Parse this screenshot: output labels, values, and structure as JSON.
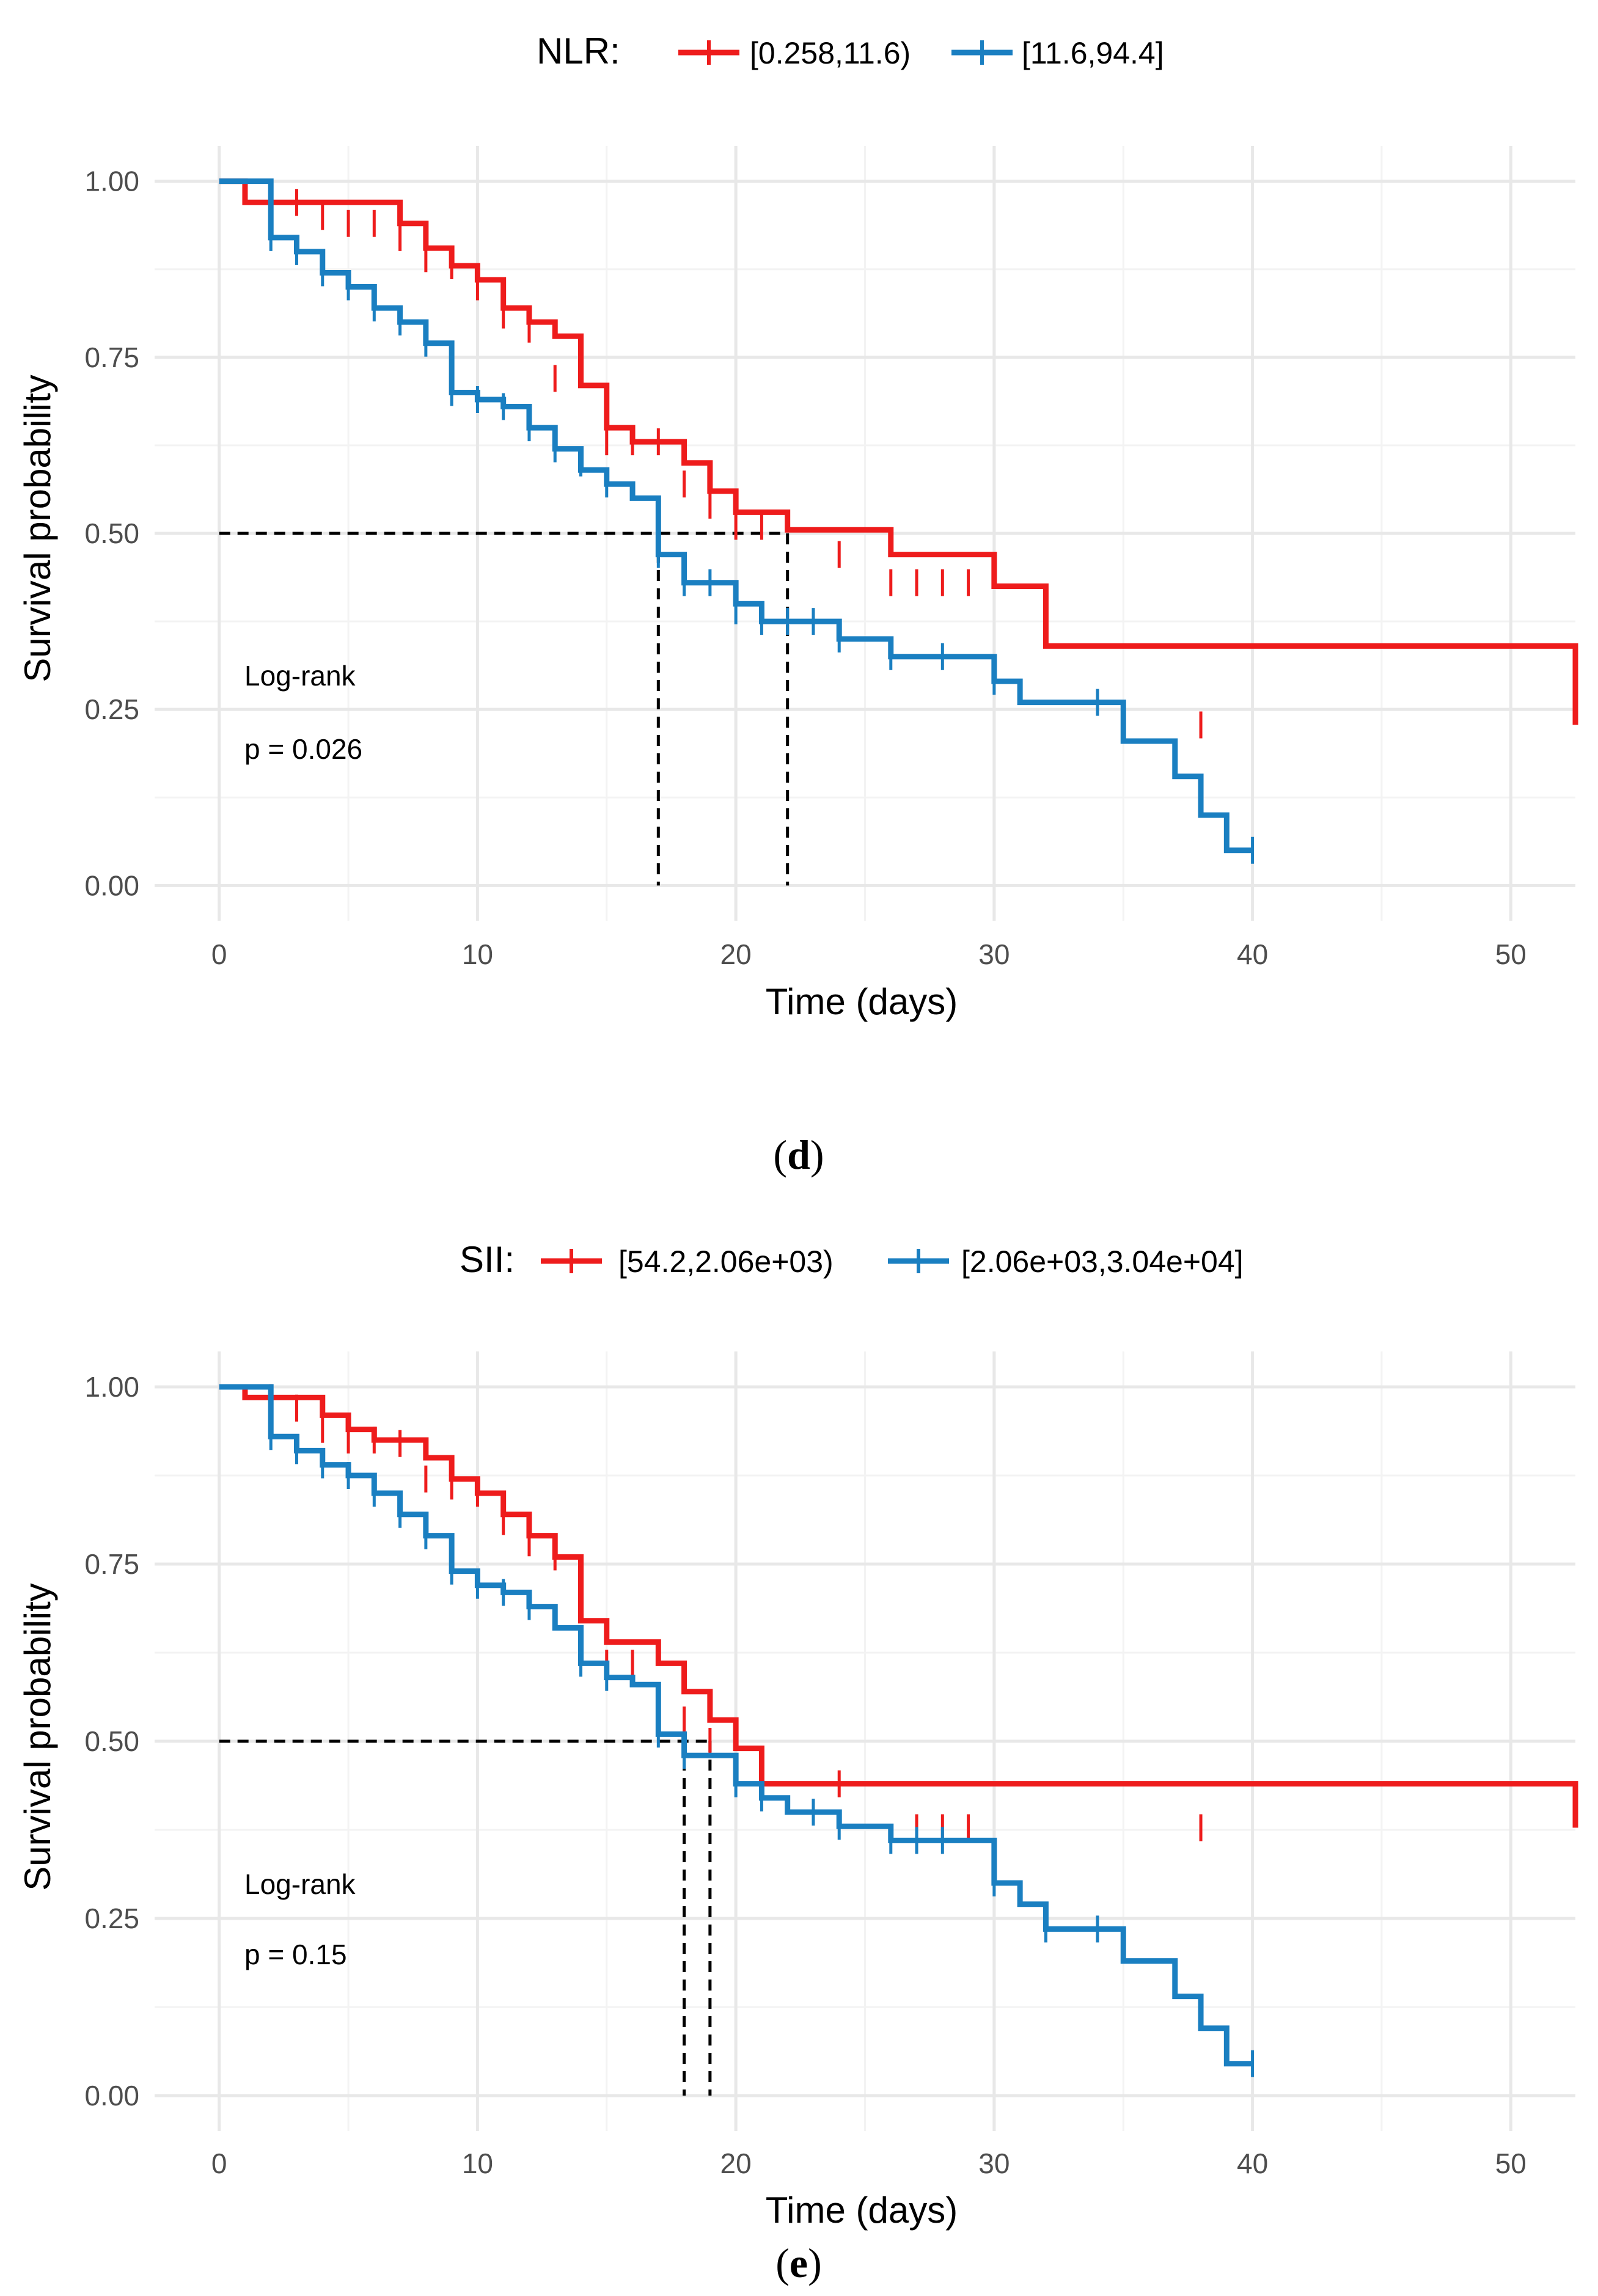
{
  "chart_data": [
    {
      "type": "line",
      "panel": "d",
      "caption_letter": "d",
      "legend": {
        "title": "NLR:",
        "entries": [
          {
            "label": "[0.258,11.6)",
            "color": "#ee1c1c"
          },
          {
            "label": "[11.6,94.4]",
            "color": "#1a7fc1"
          }
        ],
        "position": "top"
      },
      "xlabel": "Time (days)",
      "ylabel": "Survival probability",
      "xlim": [
        -2.5,
        52.5
      ],
      "ylim": [
        -0.05,
        1.05
      ],
      "xticks": [
        0,
        10,
        20,
        30,
        40,
        50
      ],
      "yticks": [
        0.0,
        0.25,
        0.5,
        0.75,
        1.0
      ],
      "ytick_labels": [
        "0.00",
        "0.25",
        "0.50",
        "0.75",
        "1.00"
      ],
      "annotations": {
        "test": "Log-rank",
        "pvalue": "p = 0.026"
      },
      "medians": [
        17,
        22
      ],
      "series": [
        {
          "name": "[0.258,11.6)",
          "color": "#ee1c1c",
          "steps": [
            [
              0,
              1.0
            ],
            [
              1,
              0.97
            ],
            [
              7,
              0.94
            ],
            [
              8,
              0.905
            ],
            [
              9,
              0.88
            ],
            [
              10,
              0.86
            ],
            [
              11,
              0.82
            ],
            [
              12,
              0.8
            ],
            [
              13,
              0.78
            ],
            [
              14,
              0.71
            ],
            [
              15,
              0.65
            ],
            [
              16,
              0.63
            ],
            [
              18,
              0.6
            ],
            [
              19,
              0.56
            ],
            [
              20,
              0.53
            ],
            [
              22,
              0.505
            ],
            [
              26,
              0.47
            ],
            [
              30,
              0.425
            ],
            [
              32,
              0.34
            ],
            [
              52.5,
              0.228
            ]
          ],
          "censors": [
            [
              2,
              0.97
            ],
            [
              3,
              0.97
            ],
            [
              4,
              0.95
            ],
            [
              5,
              0.94
            ],
            [
              6,
              0.94
            ],
            [
              7,
              0.92
            ],
            [
              8,
              0.89
            ],
            [
              9,
              0.88
            ],
            [
              10,
              0.85
            ],
            [
              11,
              0.81
            ],
            [
              12,
              0.79
            ],
            [
              13,
              0.72
            ],
            [
              15,
              0.63
            ],
            [
              16,
              0.63
            ],
            [
              17,
              0.63
            ],
            [
              18,
              0.57
            ],
            [
              19,
              0.54
            ],
            [
              20,
              0.51
            ],
            [
              21,
              0.51
            ],
            [
              24,
              0.47
            ],
            [
              26,
              0.43
            ],
            [
              27,
              0.43
            ],
            [
              28,
              0.43
            ],
            [
              29,
              0.43
            ],
            [
              38,
              0.228
            ]
          ]
        },
        {
          "name": "[11.6,94.4]",
          "color": "#1a7fc1",
          "steps": [
            [
              0,
              1.0
            ],
            [
              2,
              0.92
            ],
            [
              3,
              0.9
            ],
            [
              4,
              0.87
            ],
            [
              5,
              0.85
            ],
            [
              6,
              0.82
            ],
            [
              7,
              0.8
            ],
            [
              8,
              0.77
            ],
            [
              9,
              0.7
            ],
            [
              10,
              0.69
            ],
            [
              11,
              0.68
            ],
            [
              12,
              0.65
            ],
            [
              13,
              0.62
            ],
            [
              14,
              0.59
            ],
            [
              15,
              0.57
            ],
            [
              16,
              0.55
            ],
            [
              17,
              0.47
            ],
            [
              18,
              0.43
            ],
            [
              20,
              0.4
            ],
            [
              21,
              0.375
            ],
            [
              24,
              0.35
            ],
            [
              26,
              0.325
            ],
            [
              30,
              0.29
            ],
            [
              31,
              0.26
            ],
            [
              35,
              0.205
            ],
            [
              37,
              0.155
            ],
            [
              38,
              0.1
            ],
            [
              39,
              0.05
            ],
            [
              40,
              0.05
            ]
          ],
          "censors": [
            [
              2,
              0.92
            ],
            [
              3,
              0.9
            ],
            [
              4,
              0.87
            ],
            [
              5,
              0.85
            ],
            [
              6,
              0.82
            ],
            [
              7,
              0.8
            ],
            [
              8,
              0.77
            ],
            [
              9,
              0.7
            ],
            [
              10,
              0.69
            ],
            [
              11,
              0.68
            ],
            [
              12,
              0.65
            ],
            [
              13,
              0.62
            ],
            [
              14,
              0.6
            ],
            [
              15,
              0.57
            ],
            [
              17,
              0.47
            ],
            [
              18,
              0.43
            ],
            [
              19,
              0.43
            ],
            [
              20,
              0.39
            ],
            [
              21,
              0.375
            ],
            [
              22,
              0.375
            ],
            [
              23,
              0.375
            ],
            [
              24,
              0.35
            ],
            [
              26,
              0.325
            ],
            [
              28,
              0.325
            ],
            [
              30,
              0.29
            ],
            [
              34,
              0.26
            ],
            [
              40,
              0.05
            ]
          ]
        }
      ]
    },
    {
      "type": "line",
      "panel": "e",
      "caption_letter": "e",
      "legend": {
        "title": "SII:",
        "entries": [
          {
            "label": "[54.2,2.06e+03)",
            "color": "#ee1c1c"
          },
          {
            "label": "[2.06e+03,3.04e+04]",
            "color": "#1a7fc1"
          }
        ],
        "position": "top"
      },
      "xlabel": "Time (days)",
      "ylabel": "Survival probability",
      "xlim": [
        -2.5,
        52.5
      ],
      "ylim": [
        -0.05,
        1.05
      ],
      "xticks": [
        0,
        10,
        20,
        30,
        40,
        50
      ],
      "yticks": [
        0.0,
        0.25,
        0.5,
        0.75,
        1.0
      ],
      "ytick_labels": [
        "0.00",
        "0.25",
        "0.50",
        "0.75",
        "1.00"
      ],
      "annotations": {
        "test": "Log-rank",
        "pvalue": "p = 0.15"
      },
      "medians": [
        18,
        19
      ],
      "series": [
        {
          "name": "[54.2,2.06e+03)",
          "color": "#ee1c1c",
          "steps": [
            [
              0,
              1.0
            ],
            [
              1,
              0.985
            ],
            [
              4,
              0.96
            ],
            [
              5,
              0.94
            ],
            [
              6,
              0.925
            ],
            [
              8,
              0.9
            ],
            [
              9,
              0.87
            ],
            [
              10,
              0.85
            ],
            [
              11,
              0.82
            ],
            [
              12,
              0.79
            ],
            [
              13,
              0.76
            ],
            [
              14,
              0.67
            ],
            [
              15,
              0.64
            ],
            [
              17,
              0.61
            ],
            [
              18,
              0.57
            ],
            [
              19,
              0.53
            ],
            [
              20,
              0.49
            ],
            [
              21,
              0.44
            ],
            [
              26,
              0.44
            ],
            [
              52.5,
              0.378
            ]
          ],
          "censors": [
            [
              2,
              0.985
            ],
            [
              3,
              0.97
            ],
            [
              4,
              0.94
            ],
            [
              5,
              0.925
            ],
            [
              6,
              0.925
            ],
            [
              7,
              0.92
            ],
            [
              8,
              0.87
            ],
            [
              9,
              0.86
            ],
            [
              10,
              0.85
            ],
            [
              11,
              0.81
            ],
            [
              12,
              0.78
            ],
            [
              13,
              0.76
            ],
            [
              14,
              0.64
            ],
            [
              15,
              0.61
            ],
            [
              16,
              0.61
            ],
            [
              18,
              0.53
            ],
            [
              19,
              0.5
            ],
            [
              21,
              0.44
            ],
            [
              24,
              0.44
            ],
            [
              27,
              0.378
            ],
            [
              28,
              0.378
            ],
            [
              29,
              0.378
            ],
            [
              38,
              0.378
            ]
          ]
        },
        {
          "name": "[2.06e+03,3.04e+04]",
          "color": "#1a7fc1",
          "steps": [
            [
              0,
              1.0
            ],
            [
              2,
              0.93
            ],
            [
              3,
              0.91
            ],
            [
              4,
              0.89
            ],
            [
              5,
              0.875
            ],
            [
              6,
              0.85
            ],
            [
              7,
              0.82
            ],
            [
              8,
              0.79
            ],
            [
              9,
              0.74
            ],
            [
              10,
              0.72
            ],
            [
              11,
              0.71
            ],
            [
              12,
              0.69
            ],
            [
              13,
              0.66
            ],
            [
              14,
              0.61
            ],
            [
              15,
              0.59
            ],
            [
              16,
              0.58
            ],
            [
              17,
              0.51
            ],
            [
              18,
              0.48
            ],
            [
              20,
              0.44
            ],
            [
              21,
              0.42
            ],
            [
              22,
              0.4
            ],
            [
              24,
              0.38
            ],
            [
              26,
              0.36
            ],
            [
              30,
              0.3
            ],
            [
              31,
              0.27
            ],
            [
              32,
              0.235
            ],
            [
              35,
              0.19
            ],
            [
              37,
              0.14
            ],
            [
              38,
              0.095
            ],
            [
              39,
              0.045
            ],
            [
              40,
              0.045
            ]
          ],
          "censors": [
            [
              2,
              0.93
            ],
            [
              3,
              0.91
            ],
            [
              4,
              0.89
            ],
            [
              5,
              0.875
            ],
            [
              6,
              0.85
            ],
            [
              7,
              0.82
            ],
            [
              8,
              0.79
            ],
            [
              9,
              0.74
            ],
            [
              10,
              0.72
            ],
            [
              11,
              0.71
            ],
            [
              12,
              0.69
            ],
            [
              14,
              0.61
            ],
            [
              15,
              0.59
            ],
            [
              17,
              0.51
            ],
            [
              18,
              0.48
            ],
            [
              20,
              0.44
            ],
            [
              21,
              0.42
            ],
            [
              23,
              0.4
            ],
            [
              24,
              0.38
            ],
            [
              26,
              0.36
            ],
            [
              27,
              0.36
            ],
            [
              28,
              0.36
            ],
            [
              30,
              0.3
            ],
            [
              32,
              0.235
            ],
            [
              34,
              0.235
            ],
            [
              40,
              0.045
            ]
          ]
        }
      ]
    }
  ]
}
